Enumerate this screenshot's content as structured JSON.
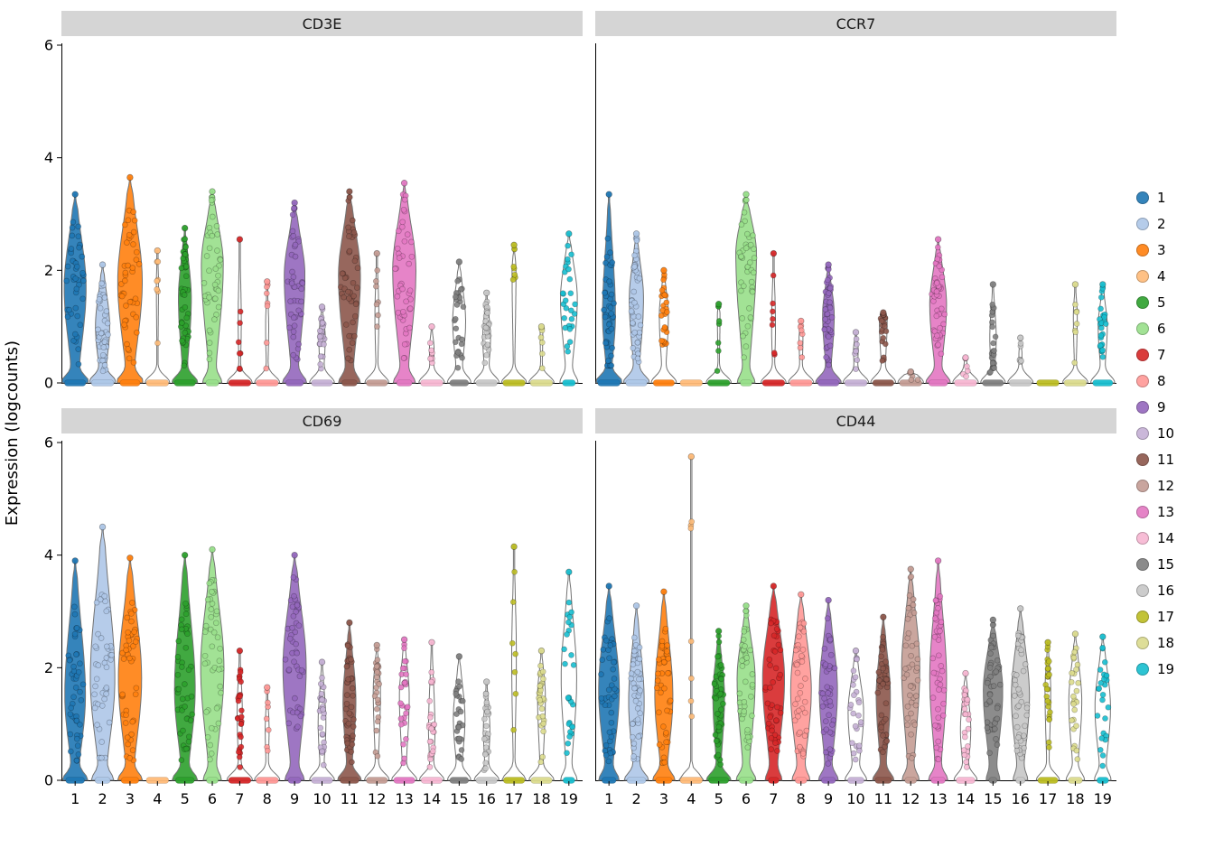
{
  "chart_data": {
    "type": "violin",
    "title": "",
    "xlabel": "",
    "ylabel": "Expression (logcounts)",
    "ylim": [
      0,
      6
    ],
    "yticks": [
      0,
      2,
      4,
      6
    ],
    "legend_position": "right",
    "violin_fields": [
      "max_expression",
      "body_center",
      "body_width",
      "zero_bar_width",
      "density_level"
    ],
    "clusters": [
      {
        "id": "1",
        "color": "#1F77B4"
      },
      {
        "id": "2",
        "color": "#AEC7E8"
      },
      {
        "id": "3",
        "color": "#FF7F0E"
      },
      {
        "id": "4",
        "color": "#FFBB78"
      },
      {
        "id": "5",
        "color": "#2CA02C"
      },
      {
        "id": "6",
        "color": "#98DF8A"
      },
      {
        "id": "7",
        "color": "#D62728"
      },
      {
        "id": "8",
        "color": "#FF9896"
      },
      {
        "id": "9",
        "color": "#9467BD"
      },
      {
        "id": "10",
        "color": "#C5B0D5"
      },
      {
        "id": "11",
        "color": "#8C564B"
      },
      {
        "id": "12",
        "color": "#C49C94"
      },
      {
        "id": "13",
        "color": "#E377C2"
      },
      {
        "id": "14",
        "color": "#F7B6D2"
      },
      {
        "id": "15",
        "color": "#7F7F7F"
      },
      {
        "id": "16",
        "color": "#C7C7C7"
      },
      {
        "id": "17",
        "color": "#BCBD22"
      },
      {
        "id": "18",
        "color": "#DBDB8D"
      },
      {
        "id": "19",
        "color": "#17BECF"
      }
    ],
    "panels": [
      {
        "title": "CD3E",
        "violins": [
          [
            3.35,
            1.7,
            0.85,
            0.9,
            2
          ],
          [
            2.1,
            1.0,
            0.55,
            0.95,
            2
          ],
          [
            3.65,
            1.8,
            0.95,
            0.85,
            2
          ],
          [
            2.35,
            1.8,
            0.08,
            0.95,
            0
          ],
          [
            2.75,
            1.5,
            0.5,
            0.9,
            2
          ],
          [
            3.4,
            2.1,
            0.85,
            0.55,
            2
          ],
          [
            2.55,
            1.1,
            0.12,
            0.95,
            0
          ],
          [
            1.8,
            1.0,
            0.12,
            0.95,
            0
          ],
          [
            3.2,
            1.9,
            0.8,
            0.75,
            2
          ],
          [
            1.35,
            0.8,
            0.25,
            0.9,
            1
          ],
          [
            3.4,
            1.9,
            0.85,
            0.65,
            2
          ],
          [
            2.3,
            1.2,
            0.15,
            0.9,
            0
          ],
          [
            3.55,
            2.0,
            0.9,
            0.65,
            2
          ],
          [
            1.0,
            0.6,
            0.18,
            0.95,
            0
          ],
          [
            2.15,
            1.1,
            0.5,
            0.8,
            1
          ],
          [
            1.6,
            0.8,
            0.3,
            0.9,
            1
          ],
          [
            2.45,
            2.0,
            0.15,
            0.95,
            0
          ],
          [
            1.0,
            0.9,
            0.1,
            0.95,
            0
          ],
          [
            2.65,
            1.5,
            0.65,
            0.55,
            1
          ]
        ]
      },
      {
        "title": "CCR7",
        "violins": [
          [
            3.35,
            1.2,
            0.5,
            0.95,
            2
          ],
          [
            2.65,
            1.5,
            0.55,
            0.9,
            2
          ],
          [
            2.0,
            1.2,
            0.35,
            0.9,
            1
          ],
          [
            0.0,
            0,
            0,
            0.95,
            0
          ],
          [
            1.4,
            1.2,
            0.1,
            0.95,
            0
          ],
          [
            3.35,
            2.3,
            0.8,
            0.5,
            2
          ],
          [
            2.3,
            1.0,
            0.15,
            0.95,
            0
          ],
          [
            1.1,
            0.8,
            0.15,
            0.95,
            0
          ],
          [
            2.1,
            1.2,
            0.45,
            0.9,
            2
          ],
          [
            0.9,
            0.6,
            0.18,
            0.95,
            0
          ],
          [
            1.25,
            1.1,
            0.3,
            0.9,
            1
          ],
          [
            0.2,
            0.1,
            0.05,
            0.95,
            0
          ],
          [
            2.55,
            1.4,
            0.65,
            0.8,
            2
          ],
          [
            0.45,
            0.3,
            0.1,
            0.95,
            0
          ],
          [
            1.75,
            0.8,
            0.25,
            0.9,
            1
          ],
          [
            0.8,
            0.5,
            0.12,
            0.95,
            0
          ],
          [
            0.0,
            0,
            0,
            0.95,
            0
          ],
          [
            1.75,
            1.2,
            0.15,
            0.95,
            0
          ],
          [
            1.75,
            1.0,
            0.35,
            0.85,
            1
          ]
        ]
      },
      {
        "title": "CD69",
        "violins": [
          [
            3.9,
            1.5,
            0.8,
            0.8,
            2
          ],
          [
            4.5,
            1.8,
            0.95,
            0.65,
            2
          ],
          [
            3.95,
            1.8,
            0.9,
            0.75,
            2
          ],
          [
            0.0,
            0,
            0,
            0.95,
            0
          ],
          [
            4.0,
            1.6,
            0.8,
            0.8,
            2
          ],
          [
            4.1,
            2.0,
            0.9,
            0.5,
            2
          ],
          [
            2.3,
            1.2,
            0.2,
            0.95,
            1
          ],
          [
            1.65,
            0.9,
            0.15,
            0.95,
            0
          ],
          [
            4.0,
            2.0,
            0.9,
            0.55,
            2
          ],
          [
            2.1,
            1.0,
            0.3,
            0.9,
            1
          ],
          [
            2.8,
            1.4,
            0.5,
            0.8,
            2
          ],
          [
            2.4,
            1.6,
            0.28,
            0.9,
            1
          ],
          [
            2.5,
            1.5,
            0.38,
            0.9,
            1
          ],
          [
            2.45,
            0.9,
            0.25,
            0.9,
            1
          ],
          [
            2.2,
            1.1,
            0.45,
            0.8,
            1
          ],
          [
            1.75,
            0.9,
            0.25,
            0.9,
            1
          ],
          [
            4.15,
            2.2,
            0.18,
            0.9,
            0
          ],
          [
            2.3,
            1.5,
            0.3,
            0.9,
            1
          ],
          [
            3.7,
            1.8,
            0.6,
            0.5,
            1
          ]
        ]
      },
      {
        "title": "CD44",
        "violins": [
          [
            3.45,
            1.6,
            0.8,
            0.6,
            2
          ],
          [
            3.1,
            1.4,
            0.6,
            0.8,
            2
          ],
          [
            3.35,
            1.5,
            0.7,
            0.7,
            2
          ],
          [
            5.75,
            2.8,
            0.04,
            0.95,
            0
          ],
          [
            2.65,
            1.5,
            0.45,
            0.85,
            2
          ],
          [
            3.1,
            1.8,
            0.7,
            0.6,
            2
          ],
          [
            3.45,
            1.8,
            0.85,
            0.45,
            2
          ],
          [
            3.3,
            1.6,
            0.8,
            0.5,
            2
          ],
          [
            3.2,
            1.6,
            0.7,
            0.6,
            2
          ],
          [
            2.3,
            1.2,
            0.6,
            0.7,
            1
          ],
          [
            2.9,
            1.5,
            0.55,
            0.7,
            2
          ],
          [
            3.75,
            2.0,
            0.7,
            0.5,
            2
          ],
          [
            3.9,
            1.8,
            0.65,
            0.6,
            2
          ],
          [
            1.9,
            0.9,
            0.4,
            0.8,
            1
          ],
          [
            2.85,
            1.6,
            0.75,
            0.35,
            2
          ],
          [
            3.05,
            1.5,
            0.7,
            0.4,
            2
          ],
          [
            2.45,
            1.6,
            0.22,
            0.85,
            1
          ],
          [
            2.6,
            1.4,
            0.5,
            0.6,
            1
          ],
          [
            2.55,
            1.3,
            0.6,
            0.5,
            1
          ]
        ]
      }
    ]
  }
}
